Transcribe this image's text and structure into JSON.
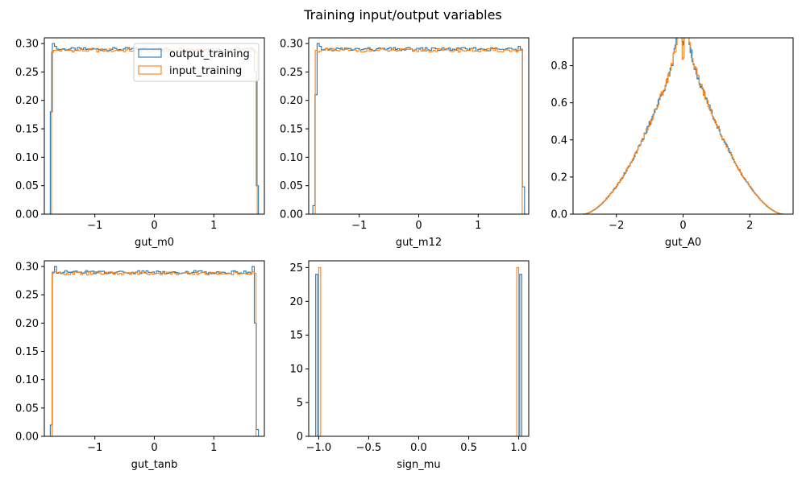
{
  "figure": {
    "title": "Training input/output variables",
    "colors": {
      "output_training": "#1f77b4",
      "input_training": "#ff7f0e"
    }
  },
  "chart_data": [
    {
      "type": "histogram-step",
      "xlabel": "gut_m0",
      "xlim": [
        -1.85,
        1.85
      ],
      "ylim": [
        0.0,
        0.31
      ],
      "xticks": [
        -1,
        0,
        1
      ],
      "yticks": [
        0.0,
        0.05,
        0.1,
        0.15,
        0.2,
        0.25,
        0.3
      ],
      "ytick_labels": [
        "0.00",
        "0.05",
        "0.10",
        "0.15",
        "0.20",
        "0.25",
        "0.30"
      ],
      "legend": {
        "position": "upper right",
        "entries": [
          "output_training",
          "input_training"
        ]
      },
      "series": [
        {
          "name": "output_training",
          "profile": "flat",
          "x_min": -1.75,
          "x_max": 1.75,
          "level": 0.29,
          "edge_left": [
            0.18,
            0.3,
            0.295
          ],
          "edge_right": [
            0.29,
            0.25,
            0.05
          ]
        },
        {
          "name": "input_training",
          "profile": "flat",
          "x_min": -1.73,
          "x_max": 1.73,
          "level": 0.288,
          "edge_left": [
            0.285,
            0.288
          ],
          "edge_right": [
            0.288,
            0.285
          ]
        }
      ]
    },
    {
      "type": "histogram-step",
      "xlabel": "gut_m12",
      "xlim": [
        -1.85,
        1.85
      ],
      "ylim": [
        0.0,
        0.31
      ],
      "xticks": [
        -1,
        0,
        1
      ],
      "yticks": [
        0.0,
        0.05,
        0.1,
        0.15,
        0.2,
        0.25,
        0.3
      ],
      "ytick_labels": [
        "0.00",
        "0.05",
        "0.10",
        "0.15",
        "0.20",
        "0.25",
        "0.30"
      ],
      "series": [
        {
          "name": "output_training",
          "profile": "flat",
          "x_min": -1.78,
          "x_max": 1.78,
          "level": 0.29,
          "edge_left": [
            0.015,
            0.21,
            0.3,
            0.295
          ],
          "edge_right": [
            0.295,
            0.29,
            0.048
          ]
        },
        {
          "name": "input_training",
          "profile": "flat",
          "x_min": -1.74,
          "x_max": 1.74,
          "level": 0.288,
          "edge_left": [
            0.288
          ],
          "edge_right": [
            0.288
          ]
        }
      ]
    },
    {
      "type": "histogram-step",
      "xlabel": "gut_A0",
      "xlim": [
        -3.3,
        3.3
      ],
      "ylim": [
        0.0,
        0.95
      ],
      "xticks": [
        -2,
        0,
        2
      ],
      "yticks": [
        0.0,
        0.2,
        0.4,
        0.6,
        0.8
      ],
      "ytick_labels": [
        "0.0",
        "0.2",
        "0.4",
        "0.6",
        "0.8"
      ],
      "series": [
        {
          "name": "output_training",
          "profile": "cusp",
          "x_min": -3.0,
          "x_max": 3.0,
          "peak": 0.91
        },
        {
          "name": "input_training",
          "profile": "cusp",
          "x_min": -3.0,
          "x_max": 3.0,
          "peak": 0.82
        }
      ]
    },
    {
      "type": "histogram-step",
      "xlabel": "gut_tanb",
      "xlim": [
        -1.85,
        1.85
      ],
      "ylim": [
        0.0,
        0.31
      ],
      "xticks": [
        -1,
        0,
        1
      ],
      "yticks": [
        0.0,
        0.05,
        0.1,
        0.15,
        0.2,
        0.25,
        0.3
      ],
      "ytick_labels": [
        "0.00",
        "0.05",
        "0.10",
        "0.15",
        "0.20",
        "0.25",
        "0.30"
      ],
      "series": [
        {
          "name": "output_training",
          "profile": "flat",
          "x_min": -1.75,
          "x_max": 1.75,
          "level": 0.29,
          "edge_left": [
            0.02,
            0.29,
            0.3
          ],
          "edge_right": [
            0.3,
            0.2,
            0.012
          ]
        },
        {
          "name": "input_training",
          "profile": "flat",
          "x_min": -1.72,
          "x_max": 1.71,
          "level": 0.288,
          "edge_left": [
            0.288
          ],
          "edge_right": [
            0.288
          ]
        }
      ]
    },
    {
      "type": "histogram-step",
      "xlabel": "sign_mu",
      "xlim": [
        -1.1,
        1.1
      ],
      "ylim": [
        0.0,
        26.0
      ],
      "xticks": [
        -1.0,
        -0.5,
        0.0,
        0.5,
        1.0
      ],
      "xtick_labels": [
        "−1.0",
        "−0.5",
        "0.0",
        "0.5",
        "1.0"
      ],
      "yticks": [
        0,
        5,
        10,
        15,
        20,
        25
      ],
      "ytick_labels": [
        "0",
        "5",
        "10",
        "15",
        "20",
        "25"
      ],
      "series": [
        {
          "name": "output_training",
          "profile": "spikes",
          "spikes": [
            [
              -1.03,
              -1.01,
              24.0
            ],
            [
              1.01,
              1.03,
              24.0
            ]
          ]
        },
        {
          "name": "input_training",
          "profile": "spikes",
          "spikes": [
            [
              -1.0,
              -0.98,
              25.0
            ],
            [
              0.98,
              1.0,
              25.0
            ]
          ]
        }
      ]
    }
  ]
}
